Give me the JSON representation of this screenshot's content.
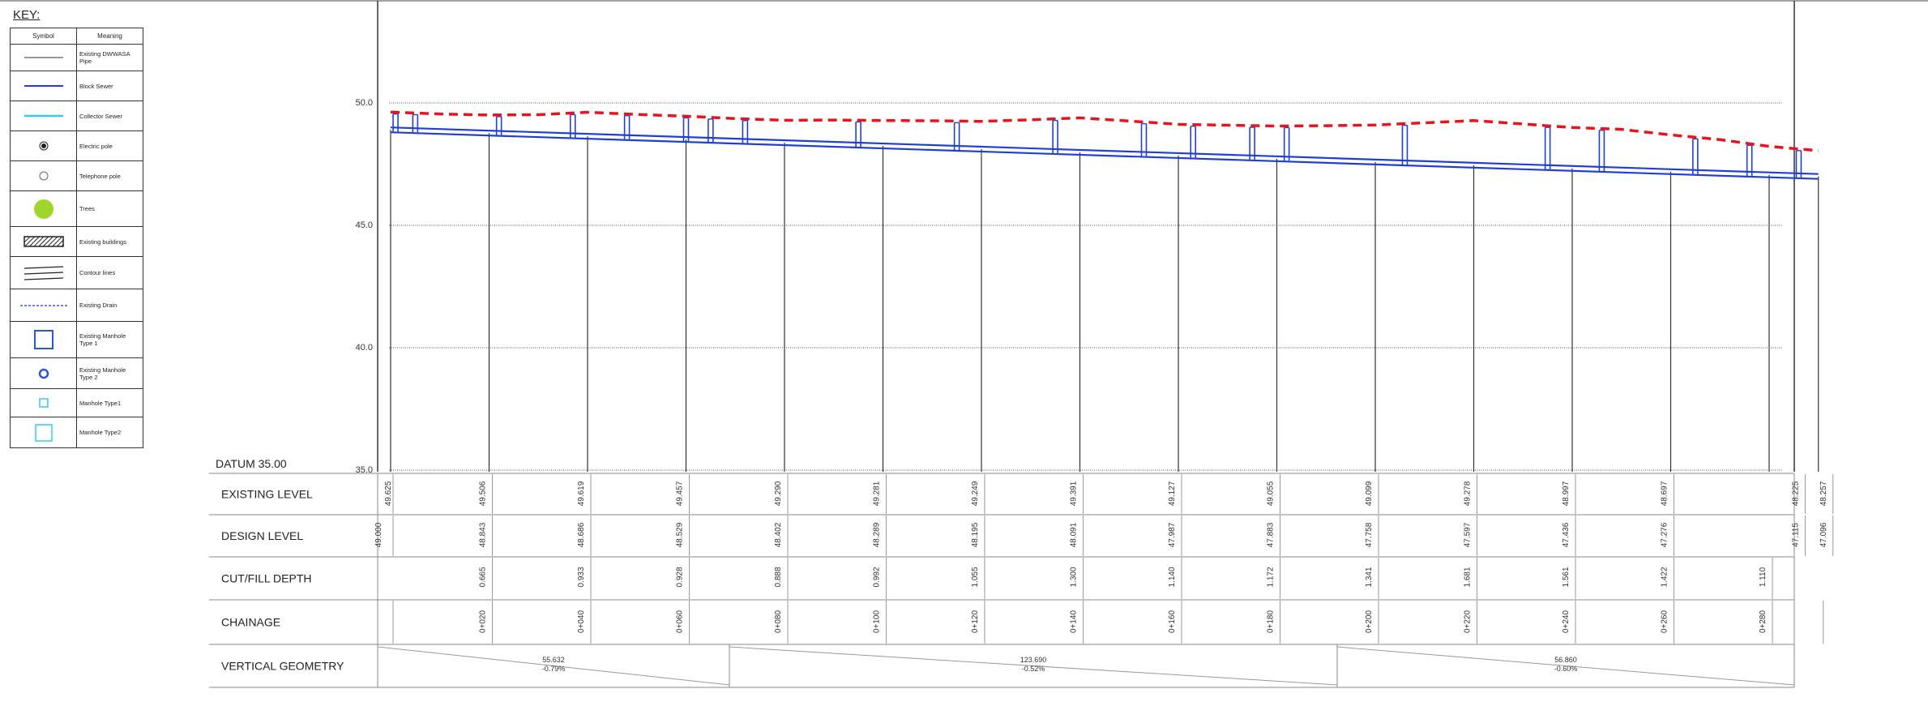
{
  "legend": {
    "title": "KEY:",
    "headers": {
      "symbol": "Symbol",
      "meaning": "Meaning"
    },
    "items": [
      {
        "icon": "thin-line-icon",
        "meaning": "Existing DWWASA Pipe"
      },
      {
        "icon": "blue-line-icon",
        "meaning": "Block Sewer"
      },
      {
        "icon": "cyan-line-icon",
        "meaning": "Collector Sewer"
      },
      {
        "icon": "electric-pole-icon",
        "meaning": "Electric pole"
      },
      {
        "icon": "telephone-pole-icon",
        "meaning": "Telephone pole"
      },
      {
        "icon": "tree-icon",
        "meaning": "Trees"
      },
      {
        "icon": "hatched-building-icon",
        "meaning": "Existing buildings"
      },
      {
        "icon": "contour-lines-icon",
        "meaning": "Contour lines"
      },
      {
        "icon": "dashed-drain-icon",
        "meaning": "Existing Drain"
      },
      {
        "icon": "manhole-square-icon",
        "meaning": "Existing Manhole Type 1"
      },
      {
        "icon": "manhole-circle-icon",
        "meaning": "Existing Manhole Type 2"
      },
      {
        "icon": "manhole-small-square-icon",
        "meaning": "Manhole Type1"
      },
      {
        "icon": "manhole-large-square-icon",
        "meaning": "Manhole Type2"
      }
    ],
    "colors": {
      "block_sewer": "#1f3fd6",
      "collector_sewer": "#36c9e8",
      "tree": "#9ed62a",
      "drain": "#3a56e0",
      "manhole": "#2a56d8"
    }
  },
  "profile": {
    "datum_label": "DATUM 35.00",
    "y_ticks": [
      "50.0",
      "45.0",
      "40.0",
      "35.0"
    ],
    "row_labels": [
      "EXISTING LEVEL",
      "DESIGN LEVEL",
      "CUT/FILL DEPTH",
      "CHAINAGE",
      "VERTICAL GEOMETRY"
    ],
    "existing_level": [
      "49.625",
      "49.506",
      "49.619",
      "49.457",
      "49.290",
      "49.281",
      "49.249",
      "49.391",
      "49.127",
      "49.055",
      "49.099",
      "49.278",
      "48.997",
      "48.697",
      "48.225",
      "48.257"
    ],
    "design_level": [
      "49.000",
      "48.843",
      "48.686",
      "48.529",
      "48.402",
      "48.289",
      "48.195",
      "48.091",
      "47.987",
      "47.883",
      "47.758",
      "47.597",
      "47.436",
      "47.276",
      "47.115",
      "47.096"
    ],
    "cut_fill_depth": [
      "0.665",
      "0.933",
      "0.928",
      "0.888",
      "0.992",
      "1.055",
      "1.300",
      "1.140",
      "1.172",
      "1.341",
      "1.681",
      "1.561",
      "1.422",
      "1.110"
    ],
    "chainage": [
      "0+020",
      "0+040",
      "0+060",
      "0+080",
      "0+100",
      "0+120",
      "0+140",
      "0+160",
      "0+180",
      "0+200",
      "0+220",
      "0+240",
      "0+260",
      "0+280"
    ],
    "vertical_geometry": [
      {
        "length": "55.632",
        "grade": "-0.79%"
      },
      {
        "length": "123.690",
        "grade": "-0.52%"
      },
      {
        "length": "56.860",
        "grade": "-0.60%"
      }
    ],
    "colors": {
      "ground": "#e8141b",
      "pipe": "#1f3fd6",
      "gridline": "#666666"
    }
  }
}
